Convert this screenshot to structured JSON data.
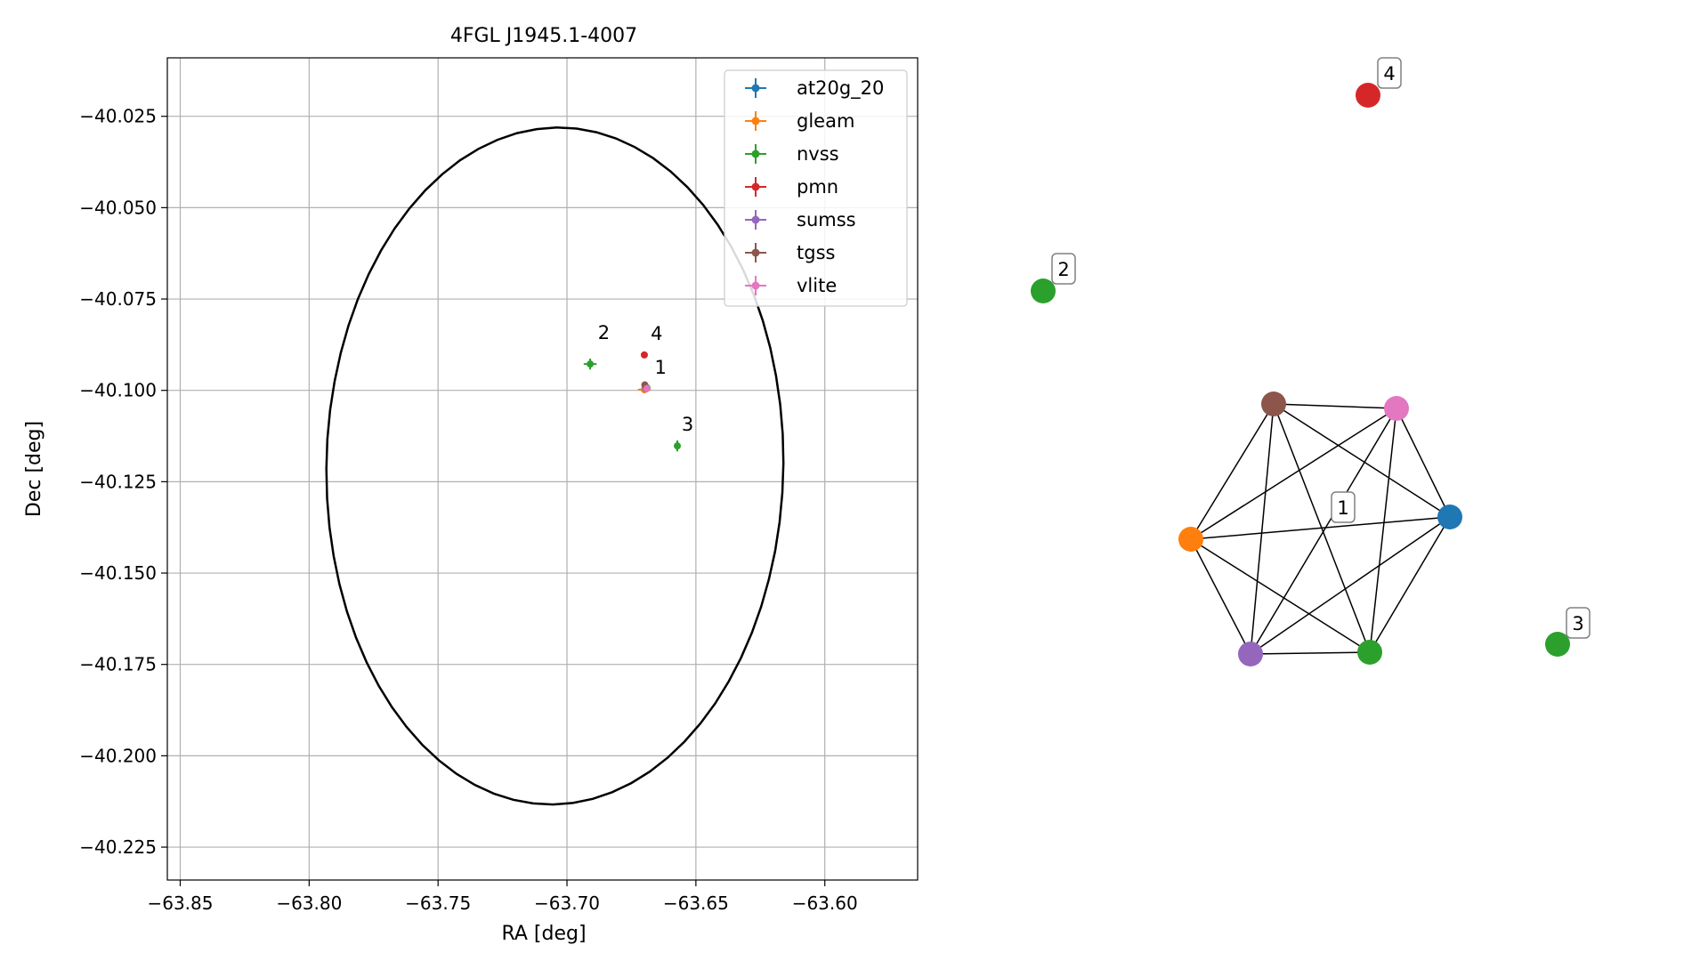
{
  "chart_data": [
    {
      "type": "scatter",
      "title": "4FGL J1945.1-4007",
      "xlabel": "RA [deg]",
      "ylabel": "Dec [deg]",
      "xlim": [
        -63.855,
        -63.564
      ],
      "ylim": [
        -40.234,
        -40.009
      ],
      "grid": true,
      "legend_placement": "top-right",
      "x_ticks": [
        -63.85,
        -63.8,
        -63.75,
        -63.7,
        -63.65,
        -63.6
      ],
      "x_tick_labels": [
        "−63.85",
        "−63.80",
        "−63.75",
        "−63.70",
        "−63.65",
        "−63.60"
      ],
      "y_ticks": [
        -40.025,
        -40.05,
        -40.075,
        -40.1,
        -40.125,
        -40.15,
        -40.175,
        -40.2,
        -40.225
      ],
      "y_tick_labels": [
        "−40.025",
        "−40.050",
        "−40.075",
        "−40.100",
        "−40.125",
        "−40.150",
        "−40.175",
        "−40.200",
        "−40.225"
      ],
      "ellipse": {
        "center_ra": -63.7047,
        "center_dec": -40.1207,
        "width_ra": 0.177,
        "height_dec": 0.1855,
        "angle_deg": -10
      },
      "series": [
        {
          "name": "at20g_20",
          "color": "#1f77b4",
          "points": [
            {
              "ra": -63.669,
              "dec": -40.0993,
              "ra_err": 0.0008,
              "dec_err": 0.0006
            }
          ]
        },
        {
          "name": "gleam",
          "color": "#ff7f0e",
          "points": [
            {
              "ra": -63.67,
              "dec": -40.0998,
              "ra_err": 0.0025,
              "dec_err": 0.001
            }
          ]
        },
        {
          "name": "nvss",
          "color": "#2ca02c",
          "points": [
            {
              "ra": -63.691,
              "dec": -40.0928,
              "ra_err": 0.0025,
              "dec_err": 0.0015
            },
            {
              "ra": -63.6572,
              "dec": -40.1152,
              "ra_err": 0.0012,
              "dec_err": 0.0015
            },
            {
              "ra": -63.669,
              "dec": -40.0993,
              "ra_err": 0.001,
              "dec_err": 0.0012
            }
          ]
        },
        {
          "name": "pmn",
          "color": "#d62728",
          "points": [
            {
              "ra": -63.67,
              "dec": -40.0903,
              "ra_err": 0.0005,
              "dec_err": 0.0005
            }
          ]
        },
        {
          "name": "sumss",
          "color": "#9467bd",
          "points": [
            {
              "ra": -63.6695,
              "dec": -40.0995,
              "ra_err": 0.001,
              "dec_err": 0.001
            }
          ]
        },
        {
          "name": "tgss",
          "color": "#8c564b",
          "points": [
            {
              "ra": -63.6698,
              "dec": -40.0985,
              "ra_err": 0.0008,
              "dec_err": 0.0008
            }
          ]
        },
        {
          "name": "vlite",
          "color": "#e377c2",
          "points": [
            {
              "ra": -63.669,
              "dec": -40.0995,
              "ra_err": 0.001,
              "dec_err": 0.001
            }
          ]
        }
      ],
      "annotations": [
        {
          "text": "1",
          "ra": -63.666,
          "dec": -40.0955
        },
        {
          "text": "2",
          "ra": -63.688,
          "dec": -40.086
        },
        {
          "text": "3",
          "ra": -63.6555,
          "dec": -40.111
        },
        {
          "text": "4",
          "ra": -63.6675,
          "dec": -40.0862
        }
      ]
    },
    {
      "type": "network",
      "nodes": [
        {
          "id": "at20g_20",
          "color": "#1f77b4",
          "group": "1"
        },
        {
          "id": "vlite",
          "color": "#e377c2",
          "group": "1"
        },
        {
          "id": "tgss",
          "color": "#8c564b",
          "group": "1"
        },
        {
          "id": "gleam",
          "color": "#ff7f0e",
          "group": "1"
        },
        {
          "id": "sumss",
          "color": "#9467bd",
          "group": "1"
        },
        {
          "id": "nvss",
          "color": "#2ca02c",
          "group": "1"
        },
        {
          "id": "nvss_2",
          "color": "#2ca02c",
          "group": "2"
        },
        {
          "id": "nvss_3",
          "color": "#2ca02c",
          "group": "3"
        },
        {
          "id": "pmn_4",
          "color": "#d62728",
          "group": "4"
        }
      ],
      "edges": [
        [
          "at20g_20",
          "vlite"
        ],
        [
          "at20g_20",
          "tgss"
        ],
        [
          "at20g_20",
          "gleam"
        ],
        [
          "at20g_20",
          "sumss"
        ],
        [
          "at20g_20",
          "nvss"
        ],
        [
          "vlite",
          "tgss"
        ],
        [
          "vlite",
          "gleam"
        ],
        [
          "vlite",
          "sumss"
        ],
        [
          "vlite",
          "nvss"
        ],
        [
          "tgss",
          "gleam"
        ],
        [
          "tgss",
          "sumss"
        ],
        [
          "tgss",
          "nvss"
        ],
        [
          "gleam",
          "sumss"
        ],
        [
          "gleam",
          "nvss"
        ],
        [
          "sumss",
          "nvss"
        ]
      ],
      "group_labels": [
        "1",
        "2",
        "3",
        "4"
      ]
    }
  ]
}
